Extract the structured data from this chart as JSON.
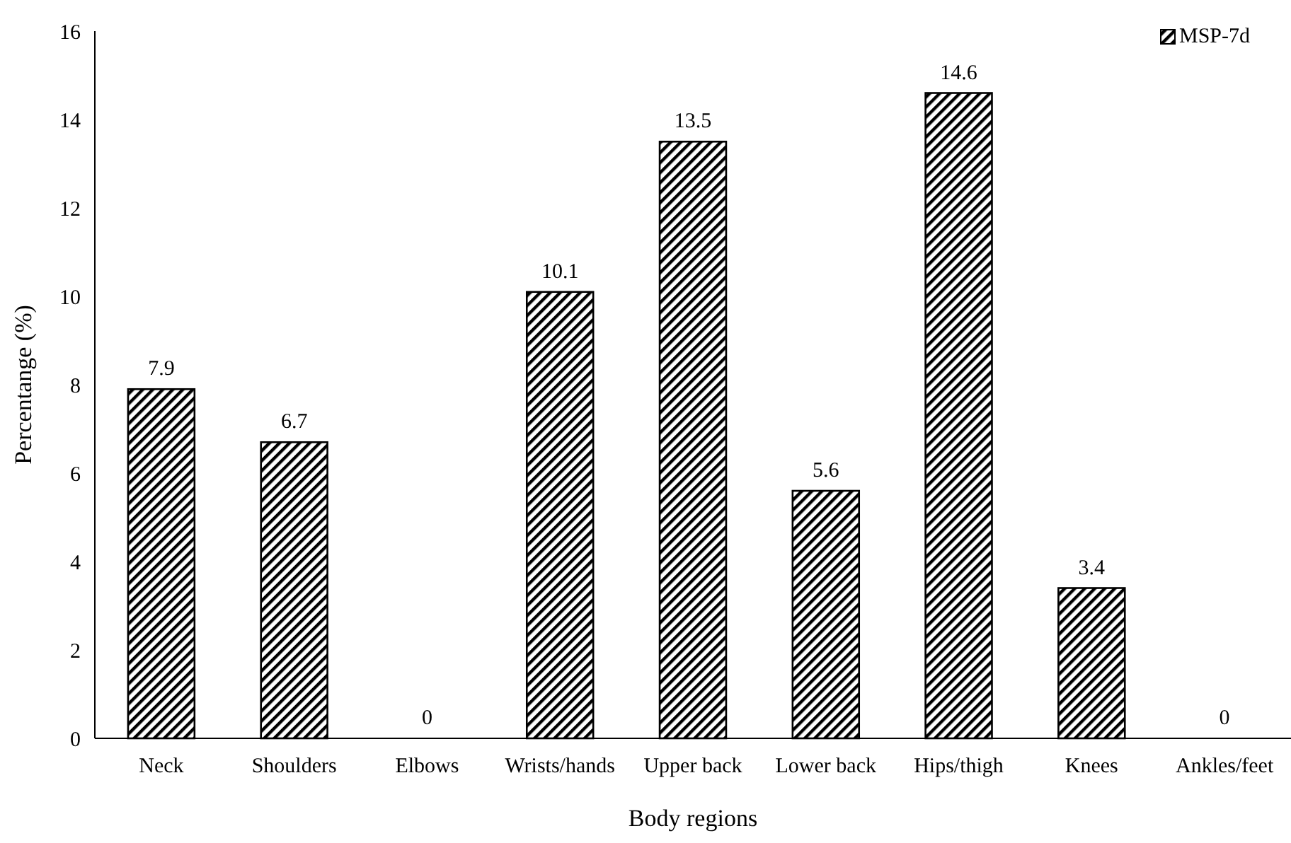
{
  "chart_data": {
    "type": "bar",
    "xlabel": "Body regions",
    "ylabel": "Percentange (%)",
    "categories": [
      "Neck",
      "Shoulders",
      "Elbows",
      "Wrists/hands",
      "Upper back",
      "Lower back",
      "Hips/thigh",
      "Knees",
      "Ankles/feet"
    ],
    "series": [
      {
        "name": "MSP-7d",
        "color": "#000000",
        "values": [
          7.9,
          6.7,
          0,
          10.1,
          13.5,
          5.6,
          14.6,
          3.4,
          0
        ]
      }
    ],
    "ylim": [
      0,
      16
    ],
    "yticks": [
      0,
      2,
      4,
      6,
      8,
      10,
      12,
      14,
      16
    ],
    "data_labels": true,
    "legend": "top right",
    "grid": false
  }
}
